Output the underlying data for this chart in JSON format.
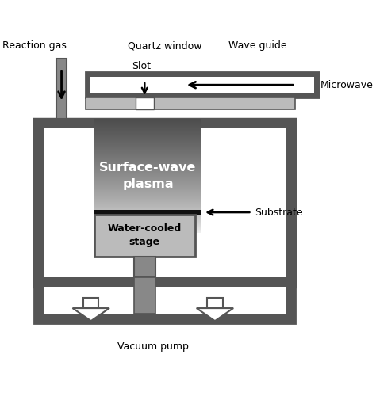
{
  "fig_width": 4.74,
  "fig_height": 5.29,
  "dpi": 100,
  "bg_color": "#ffffff",
  "dark": "#555555",
  "mid": "#888888",
  "light_gray": "#bbbbbb",
  "labels": {
    "reaction_gas": "Reaction gas",
    "quartz_window": "Quartz window",
    "slot": "Slot",
    "wave_guide": "Wave guide",
    "microwave": "Microwave",
    "plasma": "Surface-wave\nplasma",
    "substrate": "Substrate",
    "water_cooled": "Water-cooled\nstage",
    "vacuum_pump": "Vacuum pump"
  },
  "xlim": [
    0,
    10
  ],
  "ylim": [
    0,
    11
  ]
}
